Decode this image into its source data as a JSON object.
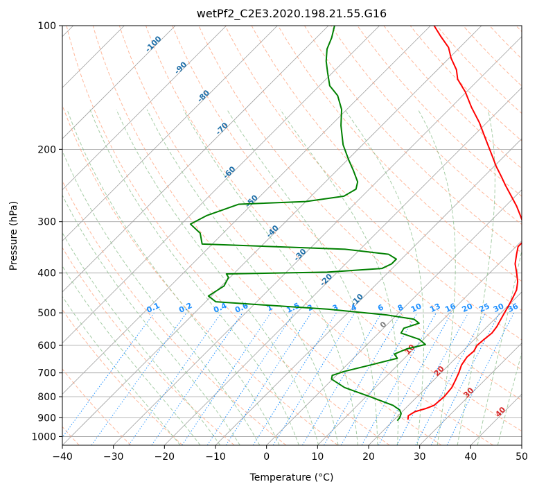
{
  "chart_data": {
    "type": "line",
    "title": "wetPf2_C2E3.2020.198.21.55.G16",
    "xlabel": "Temperature (°C)",
    "ylabel": "Pressure (hPa)",
    "xlim": [
      -40,
      50
    ],
    "ylim": [
      1050,
      100
    ],
    "y_scale": "log",
    "grid": true,
    "x_ticks": [
      -40,
      -30,
      -20,
      -10,
      0,
      10,
      20,
      30,
      40,
      50
    ],
    "y_ticks": [
      100,
      200,
      300,
      400,
      500,
      600,
      700,
      800,
      900,
      1000
    ],
    "skew": 45,
    "colors": {
      "temperature": "#ff0000",
      "dewpoint": "#008000",
      "isotherm": "#a0a0a0",
      "dry_adiabat": "#ffa07a",
      "moist_adiabat": "#90c090",
      "mixing_ratio": "#1e90ff",
      "tick_label": "#000000"
    },
    "series": [
      {
        "name": "",
        "role": "temperature",
        "points": [
          [
            22.7,
            910
          ],
          [
            22.0,
            890
          ],
          [
            22.5,
            870
          ],
          [
            24.0,
            855
          ],
          [
            25.0,
            840
          ],
          [
            25.3,
            800
          ],
          [
            25.0,
            760
          ],
          [
            24.3,
            730
          ],
          [
            23.5,
            700
          ],
          [
            22.5,
            670
          ],
          [
            22.0,
            640
          ],
          [
            22.2,
            620
          ],
          [
            21.7,
            600
          ],
          [
            21.9,
            580
          ],
          [
            22.2,
            560
          ],
          [
            21.9,
            540
          ],
          [
            21.3,
            520
          ],
          [
            20.7,
            500
          ],
          [
            20.1,
            480
          ],
          [
            19.4,
            460
          ],
          [
            18.6,
            440
          ],
          [
            17.2,
            420
          ],
          [
            15.3,
            400
          ],
          [
            13.2,
            380
          ],
          [
            11.6,
            360
          ],
          [
            10.4,
            345
          ],
          [
            10.4,
            335
          ],
          [
            9.0,
            320
          ],
          [
            7.2,
            305
          ],
          [
            4.8,
            290
          ],
          [
            2.2,
            275
          ],
          [
            -0.8,
            260
          ],
          [
            -4.0,
            245
          ],
          [
            -6.8,
            232
          ],
          [
            -9.6,
            220
          ],
          [
            -12.3,
            208
          ],
          [
            -16.7,
            190
          ],
          [
            -21.5,
            172
          ],
          [
            -26.0,
            158
          ],
          [
            -30.2,
            145
          ],
          [
            -34.2,
            135
          ],
          [
            -36.3,
            128
          ],
          [
            -39.6,
            120
          ],
          [
            -42.2,
            113
          ],
          [
            -46.0,
            106
          ],
          [
            -49.3,
            100
          ]
        ]
      },
      {
        "name": "",
        "role": "dewpoint",
        "points": [
          [
            20.8,
            915
          ],
          [
            20.7,
            900
          ],
          [
            20.2,
            880
          ],
          [
            19.2,
            862
          ],
          [
            17.0,
            840
          ],
          [
            10.8,
            800
          ],
          [
            4.0,
            760
          ],
          [
            -0.2,
            725
          ],
          [
            -0.8,
            710
          ],
          [
            0.7,
            695
          ],
          [
            4.6,
            670
          ],
          [
            8.6,
            645
          ],
          [
            7.2,
            630
          ],
          [
            8.6,
            612
          ],
          [
            11.4,
            597
          ],
          [
            9.2,
            580
          ],
          [
            4.4,
            560
          ],
          [
            4.0,
            545
          ],
          [
            6.0,
            530
          ],
          [
            4.2,
            518
          ],
          [
            -2.0,
            506
          ],
          [
            -14.5,
            490
          ],
          [
            -38.0,
            470
          ],
          [
            -40.6,
            455
          ],
          [
            -39.5,
            430
          ],
          [
            -40.3,
            410
          ],
          [
            -41.4,
            402
          ],
          [
            -22.0,
            398
          ],
          [
            -12.0,
            390
          ],
          [
            -11.0,
            380
          ],
          [
            -11.0,
            370
          ],
          [
            -13.5,
            360
          ],
          [
            -23.0,
            350
          ],
          [
            -52.0,
            340
          ],
          [
            -54.5,
            320
          ],
          [
            -58.2,
            304
          ],
          [
            -56.7,
            290
          ],
          [
            -54.0,
            278
          ],
          [
            -52.6,
            272
          ],
          [
            -40.0,
            268
          ],
          [
            -33.6,
            260
          ],
          [
            -32.6,
            250
          ],
          [
            -33.7,
            240
          ],
          [
            -36.8,
            225
          ],
          [
            -39.8,
            212
          ],
          [
            -43.8,
            195
          ],
          [
            -48.0,
            175
          ],
          [
            -51.0,
            160
          ],
          [
            -54.5,
            148
          ],
          [
            -58.0,
            140
          ],
          [
            -61.0,
            130
          ],
          [
            -63.5,
            122
          ],
          [
            -65.7,
            114
          ],
          [
            -67.0,
            107
          ],
          [
            -68.8,
            100
          ]
        ]
      }
    ],
    "mixing_ratio_labels": [
      "0.1",
      "0.2",
      "0.4",
      "0.6",
      "1",
      "1.5",
      "2",
      "3",
      "4",
      "6",
      "8",
      "10",
      "13",
      "16",
      "20",
      "25",
      "30",
      "36"
    ],
    "dry_adiabat_labels": [
      "-100",
      "-90",
      "-80",
      "-70",
      "-60",
      "-50",
      "-40",
      "-30",
      "-20",
      "-10",
      "0"
    ],
    "moist_adiabat_labels": [
      "10",
      "20",
      "30",
      "40"
    ]
  }
}
